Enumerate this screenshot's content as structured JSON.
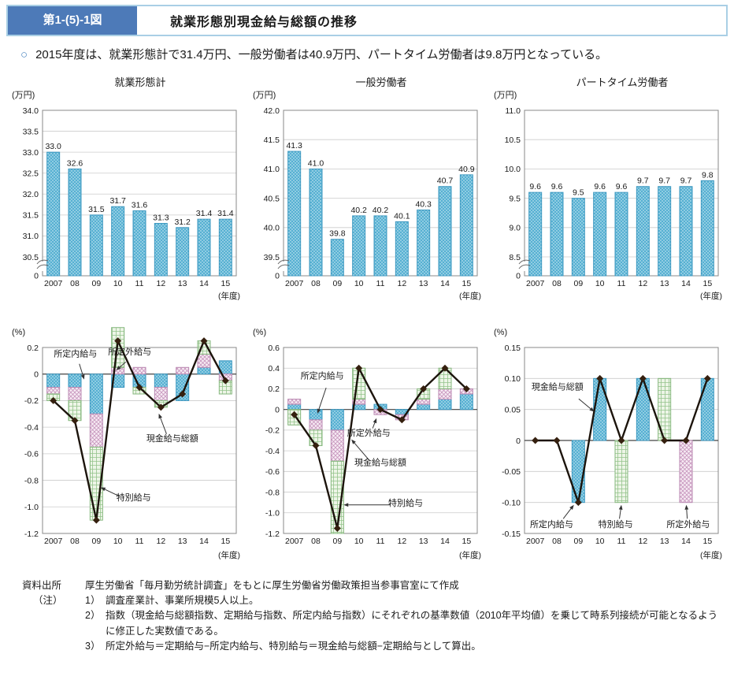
{
  "header": {
    "figure_label": "第1-(5)-1図",
    "title": "就業形態別現金給与総額の推移"
  },
  "lead": {
    "bullet": "○",
    "text": "2015年度は、就業形態計で31.4万円、一般労働者は40.9万円、パートタイム労働者は9.8万円となっている。"
  },
  "axis": {
    "year_unit": "(年度)"
  },
  "colors": {
    "header_label_bg": "#4d7ab8",
    "header_border": "#a9cfe5",
    "bullet": "#4d87c0",
    "bar_blue": "#56b0d2",
    "bar_blue_dot": "#e9f7fb",
    "bar_blue_stroke": "#3d98c0",
    "bar_pink_bg": "#f7ecf4",
    "bar_pink_hatch": "#c795bd",
    "bar_pink_stroke": "#bb8ab3",
    "bar_green_bg": "#edf5e7",
    "bar_green_hatch": "#94c48c",
    "bar_green_stroke": "#85b77d",
    "line": "#1c140c",
    "marker": "#35200f",
    "grid": "#cccccc",
    "axis": "#888888",
    "zero_line": "#444444",
    "text": "#1a1a1a"
  },
  "chart_data": [
    {
      "type": "bar",
      "title": "就業形態計",
      "unit": "(万円)",
      "categories": [
        "2007",
        "08",
        "09",
        "10",
        "11",
        "12",
        "13",
        "14",
        "15"
      ],
      "values": [
        33.0,
        32.6,
        31.5,
        31.7,
        31.6,
        31.3,
        31.2,
        31.4,
        31.4
      ],
      "ymin": 30.5,
      "ymax": 34.0,
      "tick_values": [
        34.0,
        33.5,
        33.0,
        32.5,
        32.0,
        31.5,
        31.0,
        30.5
      ],
      "tick_labels": [
        "34.0",
        "33.5",
        "33.0",
        "32.5",
        "32.0",
        "31.5",
        "31.0",
        "30.5"
      ],
      "zero_label": "0",
      "axis_break": true
    },
    {
      "type": "bar",
      "title": "一般労働者",
      "unit": "(万円)",
      "categories": [
        "2007",
        "08",
        "09",
        "10",
        "11",
        "12",
        "13",
        "14",
        "15"
      ],
      "values": [
        41.3,
        41.0,
        39.8,
        40.2,
        40.2,
        40.1,
        40.3,
        40.7,
        40.9
      ],
      "ymin": 39.5,
      "ymax": 42.0,
      "tick_values": [
        42.0,
        41.5,
        41.0,
        40.5,
        40.0,
        39.5
      ],
      "tick_labels": [
        "42.0",
        "41.5",
        "41.0",
        "40.5",
        "40.0",
        "39.5"
      ],
      "zero_label": "0",
      "axis_break": true
    },
    {
      "type": "bar",
      "title": "パートタイム労働者",
      "unit": "(万円)",
      "categories": [
        "2007",
        "08",
        "09",
        "10",
        "11",
        "12",
        "13",
        "14",
        "15"
      ],
      "values": [
        9.6,
        9.6,
        9.5,
        9.6,
        9.6,
        9.7,
        9.7,
        9.7,
        9.8
      ],
      "ymin": 8.5,
      "ymax": 11.0,
      "tick_values": [
        11.0,
        10.5,
        10.0,
        9.5,
        9.0,
        8.5
      ],
      "tick_labels": [
        "11.0",
        "10.5",
        "10.0",
        "9.5",
        "9.0",
        "8.5"
      ],
      "zero_label": "0",
      "axis_break": true
    },
    {
      "type": "stacked-bar-line",
      "title": "",
      "unit": "(%)",
      "categories": [
        "2007",
        "08",
        "09",
        "10",
        "11",
        "12",
        "13",
        "14",
        "15"
      ],
      "ymin": -1.2,
      "ymax": 0.2,
      "tick_values": [
        0.2,
        0,
        -0.2,
        -0.4,
        -0.6,
        -0.8,
        -1.0,
        -1.2
      ],
      "tick_labels": [
        "0.2",
        "0",
        "-0.2",
        "-0.4",
        "-0.6",
        "-0.8",
        "-1.0",
        "-1.2"
      ],
      "series": [
        {
          "name": "所定内給与",
          "color": "blue",
          "values": [
            -0.1,
            -0.1,
            -0.3,
            -0.1,
            -0.1,
            -0.1,
            -0.2,
            0.05,
            0.1
          ]
        },
        {
          "name": "所定外給与",
          "color": "pink",
          "values": [
            -0.05,
            -0.1,
            -0.25,
            0.05,
            0.05,
            -0.1,
            0.05,
            0.1,
            -0.05
          ]
        },
        {
          "name": "特別給与",
          "color": "green",
          "values": [
            -0.05,
            -0.15,
            -0.55,
            0.3,
            -0.05,
            -0.05,
            0.0,
            0.1,
            -0.1
          ]
        }
      ],
      "line": {
        "name": "現金給与総額",
        "values": [
          -0.2,
          -0.35,
          -1.1,
          0.25,
          -0.1,
          -0.25,
          -0.15,
          0.25,
          -0.05
        ]
      },
      "annotations": [
        {
          "text": "所定内給与",
          "tx": 0.17,
          "ty": 0.04,
          "x1": 0.19,
          "y1": 0.08,
          "x2": 0.215,
          "y2": 0.165
        },
        {
          "text": "所定外給与",
          "tx": 0.45,
          "ty": 0.03,
          "x1": 0.43,
          "y1": 0.07,
          "x2": 0.38,
          "y2": 0.115
        },
        {
          "text": "現金給与総額",
          "tx": 0.67,
          "ty": 0.5,
          "x1": 0.64,
          "y1": 0.46,
          "x2": 0.6,
          "y2": 0.35
        },
        {
          "text": "特別給与",
          "tx": 0.47,
          "ty": 0.82,
          "x1": 0.4,
          "y1": 0.8,
          "x2": 0.3,
          "y2": 0.75
        }
      ]
    },
    {
      "type": "stacked-bar-line",
      "title": "",
      "unit": "(%)",
      "categories": [
        "2007",
        "08",
        "09",
        "10",
        "11",
        "12",
        "13",
        "14",
        "15"
      ],
      "ymin": -1.2,
      "ymax": 0.6,
      "tick_values": [
        0.6,
        0.4,
        0.2,
        0,
        -0.2,
        -0.4,
        -0.6,
        -0.8,
        -1.0,
        -1.2
      ],
      "tick_labels": [
        "0.6",
        "0.4",
        "0.2",
        "0",
        "-0.2",
        "-0.4",
        "-0.6",
        "-0.8",
        "-1.0",
        "-1.2"
      ],
      "series": [
        {
          "name": "所定内給与",
          "color": "blue",
          "values": [
            0.05,
            -0.1,
            -0.2,
            0.05,
            0.05,
            -0.05,
            0.05,
            0.1,
            0.15
          ]
        },
        {
          "name": "所定外給与",
          "color": "pink",
          "values": [
            0.05,
            -0.1,
            -0.3,
            0.05,
            -0.05,
            -0.05,
            0.05,
            0.1,
            0.05
          ]
        },
        {
          "name": "特別給与",
          "color": "green",
          "values": [
            -0.15,
            -0.15,
            -0.7,
            0.3,
            0.0,
            0.0,
            0.1,
            0.2,
            0.0
          ]
        }
      ],
      "line": {
        "name": "現金給与総額",
        "values": [
          -0.05,
          -0.35,
          -1.15,
          0.4,
          0.0,
          -0.1,
          0.2,
          0.4,
          0.2
        ]
      },
      "annotations": [
        {
          "text": "所定内給与",
          "tx": 0.2,
          "ty": 0.16,
          "x1": 0.22,
          "y1": 0.21,
          "x2": 0.175,
          "y2": 0.35
        },
        {
          "text": "所定外給与",
          "tx": 0.44,
          "ty": 0.47,
          "x1": 0.46,
          "y1": 0.43,
          "x2": 0.48,
          "y2": 0.375
        },
        {
          "text": "現金給与総額",
          "tx": 0.5,
          "ty": 0.63,
          "x1": 0.44,
          "y1": 0.6,
          "x2": 0.35,
          "y2": 0.49
        },
        {
          "text": "特別給与",
          "tx": 0.63,
          "ty": 0.85,
          "x1": 0.55,
          "y1": 0.845,
          "x2": 0.31,
          "y2": 0.845
        }
      ]
    },
    {
      "type": "stacked-bar-line",
      "title": "",
      "unit": "(%)",
      "categories": [
        "2007",
        "08",
        "09",
        "10",
        "11",
        "12",
        "13",
        "14",
        "15"
      ],
      "ymin": -0.15,
      "ymax": 0.15,
      "tick_values": [
        0.15,
        0.1,
        0.05,
        0,
        -0.05,
        -0.1,
        -0.15
      ],
      "tick_labels": [
        "0.15",
        "0.10",
        "0.05",
        "0",
        "-0.05",
        "-0.10",
        "-0.15"
      ],
      "series": [
        {
          "name": "所定内給与",
          "color": "blue",
          "values": [
            0,
            0,
            -0.1,
            0.1,
            0,
            0.1,
            0,
            0,
            0.1
          ]
        },
        {
          "name": "所定外給与",
          "color": "pink",
          "values": [
            0,
            0,
            0,
            0,
            0,
            0,
            0,
            -0.1,
            0
          ]
        },
        {
          "name": "特別給与",
          "color": "green",
          "values": [
            0,
            0,
            0,
            0,
            -0.1,
            0,
            0.1,
            0,
            0
          ]
        }
      ],
      "line": {
        "name": "現金給与総額",
        "values": [
          0,
          0,
          -0.1,
          0.1,
          0,
          0.1,
          0,
          0,
          0.1
        ]
      },
      "annotations": [
        {
          "text": "現金給与総額",
          "tx": 0.17,
          "ty": 0.22,
          "x1": 0.28,
          "y1": 0.27,
          "x2": 0.36,
          "y2": 0.34
        },
        {
          "text": "所定内給与",
          "tx": 0.14,
          "ty": 0.965,
          "x1": 0.2,
          "y1": 0.92,
          "x2": 0.255,
          "y2": 0.845
        },
        {
          "text": "特別給与",
          "tx": 0.47,
          "ty": 0.965,
          "x1": 0.49,
          "y1": 0.92,
          "x2": 0.5,
          "y2": 0.845
        },
        {
          "text": "所定外給与",
          "tx": 0.845,
          "ty": 0.965,
          "x1": 0.84,
          "y1": 0.92,
          "x2": 0.835,
          "y2": 0.845
        }
      ]
    }
  ],
  "notes": {
    "source_label": "資料出所",
    "source_text": "厚生労働省「毎月勤労統計調査」をもとに厚生労働省労働政策担当参事官室にて作成",
    "note_label": "（注）",
    "items": [
      {
        "num": "1）",
        "text": "調査産業計、事業所規模5人以上。"
      },
      {
        "num": "2）",
        "text": "指数（現金給与総額指数、定期給与指数、所定内給与指数）にそれぞれの基準数値（2010年平均値）を乗じて時系列接続が可能となるように修正した実数値である。"
      },
      {
        "num": "3）",
        "text": "所定外給与＝定期給与−所定内給与、特別給与＝現金給与総額−定期給与として算出。"
      }
    ]
  }
}
